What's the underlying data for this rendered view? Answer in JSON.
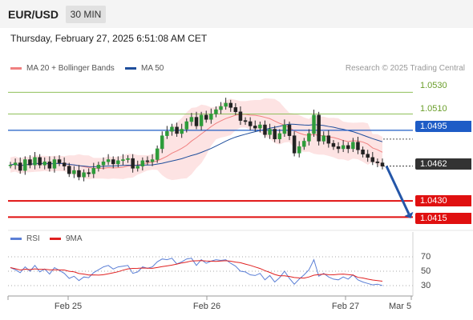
{
  "header": {
    "pair": "EUR/USD",
    "timeframe": "30 MIN",
    "datetime": "Thursday, February 27, 2025 6:51:08 AM CET"
  },
  "legend": {
    "bollinger": "MA 20 + Bollinger Bands",
    "bollinger_color": "#f08080",
    "ma50": "MA 50",
    "ma50_color": "#1f4e9c",
    "credit": "Research © 2025 Trading Central"
  },
  "rsi_legend": {
    "rsi": "RSI",
    "rsi_color": "#5b7fd6",
    "ma9": "9MA",
    "ma9_color": "#e02020"
  },
  "levels": {
    "r2": "1.0530",
    "r1": "1.0510",
    "pivot": "1.0495",
    "last": "1.0462",
    "s1": "1.0430",
    "s2": "1.0415"
  },
  "x_labels": [
    "Feb 25",
    "Feb 26",
    "Feb 27",
    "Mar 5"
  ],
  "rsi_ticks": [
    "70",
    "50",
    "30"
  ],
  "chart_data": {
    "type": "line",
    "series": [
      {
        "name": "EUR/USD",
        "x_step": "30 MIN",
        "values": [
          1.0463,
          1.0465,
          1.0458,
          1.0468,
          1.0463,
          1.047,
          1.0463,
          1.0466,
          1.046,
          1.0468,
          1.0465,
          1.0462,
          1.0455,
          1.0458,
          1.0452,
          1.0456,
          1.0455,
          1.046,
          1.0463,
          1.0466,
          1.0468,
          1.0464,
          1.0467,
          1.0468,
          1.0469,
          1.046,
          1.0462,
          1.0467,
          1.0466,
          1.0468,
          1.0478,
          1.049,
          1.0494,
          1.0498,
          1.0492,
          1.0496,
          1.0503,
          1.0507,
          1.0499,
          1.0509,
          1.0505,
          1.051,
          1.0514,
          1.0517,
          1.052,
          1.0516,
          1.0512,
          1.0504,
          1.0503,
          1.0499,
          1.0497,
          1.05,
          1.0491,
          1.0496,
          1.0487,
          1.0492,
          1.05,
          1.049,
          1.0474,
          1.048,
          1.0485,
          1.0492,
          1.0509,
          1.0485,
          1.049,
          1.0483,
          1.048,
          1.0478,
          1.0481,
          1.0478,
          1.0484,
          1.0477,
          1.0473,
          1.047,
          1.0466,
          1.0465,
          1.0462
        ]
      }
    ],
    "overlays": [
      "MA 20 + Bollinger Bands",
      "MA 50"
    ],
    "levels": [
      1.053,
      1.051,
      1.0495,
      1.0462,
      1.043,
      1.0415
    ],
    "forecast_arrow": {
      "from": 1.0462,
      "to": 1.0415
    },
    "rsi": {
      "values": [
        55,
        52,
        48,
        56,
        50,
        58,
        49,
        53,
        46,
        55,
        51,
        47,
        40,
        43,
        37,
        42,
        41,
        48,
        52,
        56,
        58,
        53,
        56,
        57,
        58,
        47,
        49,
        56,
        54,
        56,
        63,
        67,
        66,
        68,
        60,
        63,
        67,
        68,
        58,
        66,
        61,
        64,
        66,
        65,
        66,
        61,
        57,
        50,
        49,
        45,
        44,
        47,
        38,
        44,
        35,
        41,
        50,
        40,
        32,
        39,
        45,
        52,
        66,
        43,
        47,
        42,
        39,
        38,
        42,
        39,
        45,
        38,
        35,
        33,
        31,
        32,
        30
      ],
      "ylim": [
        30,
        70
      ]
    },
    "xlabels": [
      "Feb 25",
      "Feb 26",
      "Feb 27",
      "Mar 5"
    ],
    "ylim": [
      1.0405,
      1.0545
    ]
  }
}
